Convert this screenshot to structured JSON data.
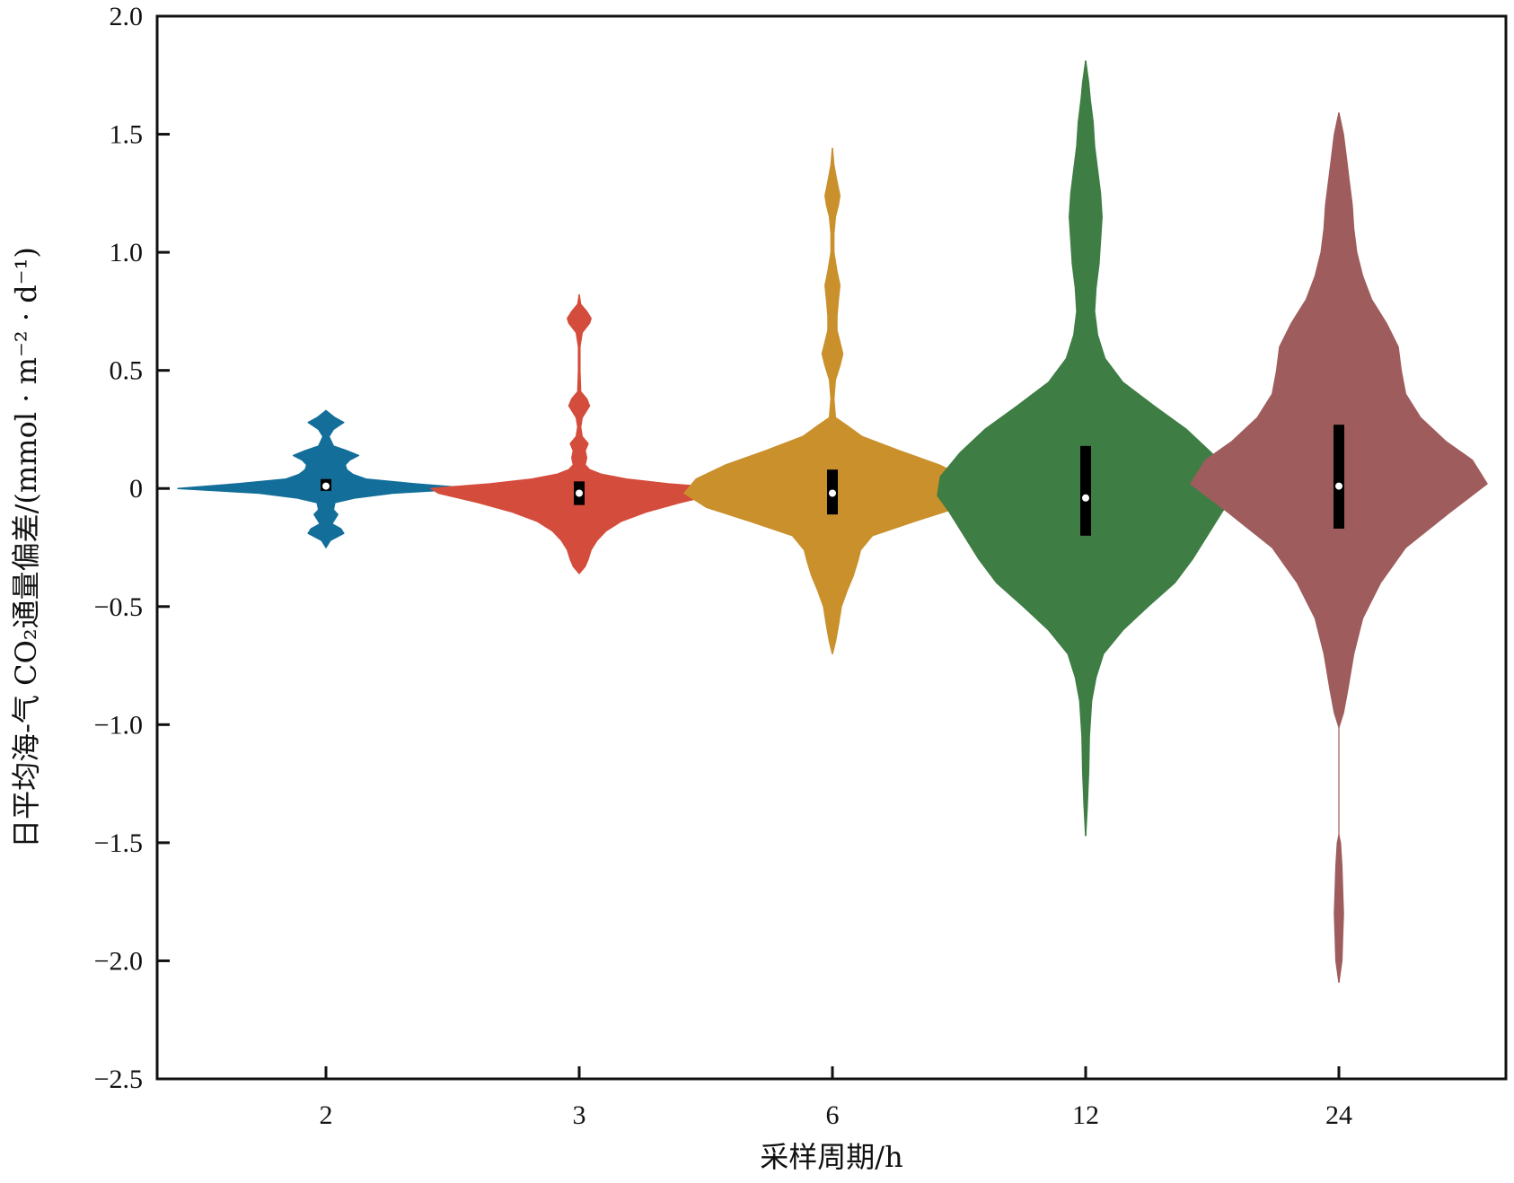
{
  "chart_data": {
    "type": "violin",
    "xlabel": "采样周期/h",
    "ylabel": "日平均海-气 CO₂通量偏差/(mmol · m⁻² · d⁻¹)",
    "ylim": [
      -2.5,
      2.0
    ],
    "yticks": [
      2.0,
      1.5,
      1.0,
      0.5,
      0,
      -0.5,
      -1.0,
      -1.5,
      -2.0,
      -2.5
    ],
    "ytick_labels": [
      "2.0",
      "1.5",
      "1.0",
      "0.5",
      "0",
      "−0.5",
      "−1.0",
      "−1.5",
      "−2.0",
      "−2.5"
    ],
    "categories": [
      "2",
      "3",
      "6",
      "12",
      "24"
    ],
    "grid": false,
    "legend": "none",
    "series": [
      {
        "category": "2",
        "color": "#136f9a",
        "median": 0.01,
        "q1": -0.01,
        "q3": 0.04,
        "min": -0.25,
        "max": 0.33,
        "density": [
          [
            -0.25,
            0.0
          ],
          [
            -0.22,
            0.03
          ],
          [
            -0.19,
            0.12
          ],
          [
            -0.17,
            0.1
          ],
          [
            -0.15,
            0.04
          ],
          [
            -0.13,
            0.06
          ],
          [
            -0.11,
            0.08
          ],
          [
            -0.09,
            0.05
          ],
          [
            -0.06,
            0.06
          ],
          [
            -0.04,
            0.2
          ],
          [
            -0.02,
            0.45
          ],
          [
            0.0,
            1.0
          ],
          [
            0.02,
            0.6
          ],
          [
            0.04,
            0.27
          ],
          [
            0.06,
            0.18
          ],
          [
            0.08,
            0.14
          ],
          [
            0.1,
            0.13
          ],
          [
            0.12,
            0.16
          ],
          [
            0.14,
            0.22
          ],
          [
            0.16,
            0.14
          ],
          [
            0.18,
            0.05
          ],
          [
            0.22,
            0.02
          ],
          [
            0.25,
            0.05
          ],
          [
            0.28,
            0.12
          ],
          [
            0.3,
            0.06
          ],
          [
            0.33,
            0.0
          ]
        ]
      },
      {
        "category": "3",
        "color": "#d44c3c",
        "median": -0.02,
        "q1": -0.07,
        "q3": 0.03,
        "min": -0.36,
        "max": 0.82,
        "density": [
          [
            -0.36,
            0.0
          ],
          [
            -0.33,
            0.04
          ],
          [
            -0.3,
            0.06
          ],
          [
            -0.26,
            0.08
          ],
          [
            -0.22,
            0.12
          ],
          [
            -0.18,
            0.18
          ],
          [
            -0.14,
            0.28
          ],
          [
            -0.1,
            0.45
          ],
          [
            -0.06,
            0.68
          ],
          [
            -0.02,
            0.95
          ],
          [
            0.0,
            1.0
          ],
          [
            0.02,
            0.6
          ],
          [
            0.04,
            0.32
          ],
          [
            0.06,
            0.15
          ],
          [
            0.08,
            0.07
          ],
          [
            0.1,
            0.04
          ],
          [
            0.13,
            0.05
          ],
          [
            0.16,
            0.04
          ],
          [
            0.19,
            0.06
          ],
          [
            0.22,
            0.02
          ],
          [
            0.26,
            0.01
          ],
          [
            0.3,
            0.02
          ],
          [
            0.33,
            0.05
          ],
          [
            0.35,
            0.07
          ],
          [
            0.38,
            0.05
          ],
          [
            0.41,
            0.01
          ],
          [
            0.5,
            0.005
          ],
          [
            0.6,
            0.005
          ],
          [
            0.66,
            0.02
          ],
          [
            0.7,
            0.07
          ],
          [
            0.72,
            0.08
          ],
          [
            0.75,
            0.05
          ],
          [
            0.78,
            0.01
          ],
          [
            0.82,
            0.0
          ]
        ]
      },
      {
        "category": "6",
        "color": "#c9902c",
        "median": -0.02,
        "q1": -0.11,
        "q3": 0.08,
        "min": -0.7,
        "max": 1.44,
        "density": [
          [
            -0.7,
            0.0
          ],
          [
            -0.65,
            0.02
          ],
          [
            -0.58,
            0.04
          ],
          [
            -0.5,
            0.06
          ],
          [
            -0.43,
            0.1
          ],
          [
            -0.37,
            0.14
          ],
          [
            -0.31,
            0.17
          ],
          [
            -0.26,
            0.19
          ],
          [
            -0.2,
            0.27
          ],
          [
            -0.14,
            0.55
          ],
          [
            -0.08,
            0.85
          ],
          [
            -0.02,
            1.0
          ],
          [
            0.04,
            0.92
          ],
          [
            0.1,
            0.72
          ],
          [
            0.16,
            0.45
          ],
          [
            0.22,
            0.2
          ],
          [
            0.27,
            0.09
          ],
          [
            0.3,
            0.02
          ],
          [
            0.38,
            0.01
          ],
          [
            0.46,
            0.02
          ],
          [
            0.52,
            0.05
          ],
          [
            0.57,
            0.07
          ],
          [
            0.62,
            0.05
          ],
          [
            0.67,
            0.03
          ],
          [
            0.73,
            0.03
          ],
          [
            0.8,
            0.04
          ],
          [
            0.86,
            0.05
          ],
          [
            0.92,
            0.03
          ],
          [
            1.0,
            0.01
          ],
          [
            1.08,
            0.01
          ],
          [
            1.15,
            0.02
          ],
          [
            1.2,
            0.04
          ],
          [
            1.24,
            0.05
          ],
          [
            1.3,
            0.03
          ],
          [
            1.37,
            0.01
          ],
          [
            1.44,
            0.0
          ]
        ]
      },
      {
        "category": "12",
        "color": "#3e7d44",
        "median": -0.04,
        "q1": -0.2,
        "q3": 0.18,
        "min": -1.47,
        "max": 1.81,
        "density": [
          [
            -1.47,
            0.0
          ],
          [
            -1.35,
            0.01
          ],
          [
            -1.2,
            0.02
          ],
          [
            -1.05,
            0.025
          ],
          [
            -0.9,
            0.04
          ],
          [
            -0.8,
            0.07
          ],
          [
            -0.7,
            0.12
          ],
          [
            -0.6,
            0.25
          ],
          [
            -0.5,
            0.42
          ],
          [
            -0.4,
            0.6
          ],
          [
            -0.3,
            0.72
          ],
          [
            -0.2,
            0.82
          ],
          [
            -0.1,
            0.92
          ],
          [
            -0.03,
            1.0
          ],
          [
            0.05,
            0.98
          ],
          [
            0.15,
            0.85
          ],
          [
            0.25,
            0.68
          ],
          [
            0.35,
            0.46
          ],
          [
            0.45,
            0.25
          ],
          [
            0.55,
            0.13
          ],
          [
            0.65,
            0.08
          ],
          [
            0.75,
            0.06
          ],
          [
            0.85,
            0.07
          ],
          [
            0.95,
            0.09
          ],
          [
            1.05,
            0.1
          ],
          [
            1.15,
            0.11
          ],
          [
            1.25,
            0.1
          ],
          [
            1.35,
            0.08
          ],
          [
            1.45,
            0.06
          ],
          [
            1.55,
            0.05
          ],
          [
            1.65,
            0.03
          ],
          [
            1.72,
            0.02
          ],
          [
            1.81,
            0.0
          ]
        ]
      },
      {
        "category": "24",
        "color": "#9f5c5c",
        "median": 0.01,
        "q1": -0.17,
        "q3": 0.27,
        "min": -2.09,
        "max": 1.59,
        "density": [
          [
            -2.09,
            0.0
          ],
          [
            -2.0,
            0.02
          ],
          [
            -1.9,
            0.025
          ],
          [
            -1.8,
            0.03
          ],
          [
            -1.7,
            0.025
          ],
          [
            -1.6,
            0.02
          ],
          [
            -1.5,
            0.01
          ],
          [
            -1.47,
            0.0
          ],
          [
            -1.46,
            null
          ],
          [
            -1.01,
            0.0
          ],
          [
            -0.95,
            0.03
          ],
          [
            -0.85,
            0.06
          ],
          [
            -0.7,
            0.1
          ],
          [
            -0.55,
            0.16
          ],
          [
            -0.4,
            0.28
          ],
          [
            -0.25,
            0.45
          ],
          [
            -0.1,
            0.75
          ],
          [
            0.02,
            1.0
          ],
          [
            0.12,
            0.9
          ],
          [
            0.2,
            0.72
          ],
          [
            0.3,
            0.55
          ],
          [
            0.4,
            0.45
          ],
          [
            0.5,
            0.42
          ],
          [
            0.6,
            0.4
          ],
          [
            0.7,
            0.32
          ],
          [
            0.8,
            0.22
          ],
          [
            0.9,
            0.16
          ],
          [
            1.0,
            0.12
          ],
          [
            1.1,
            0.1
          ],
          [
            1.2,
            0.09
          ],
          [
            1.3,
            0.07
          ],
          [
            1.4,
            0.05
          ],
          [
            1.5,
            0.03
          ],
          [
            1.59,
            0.0
          ]
        ]
      }
    ]
  }
}
